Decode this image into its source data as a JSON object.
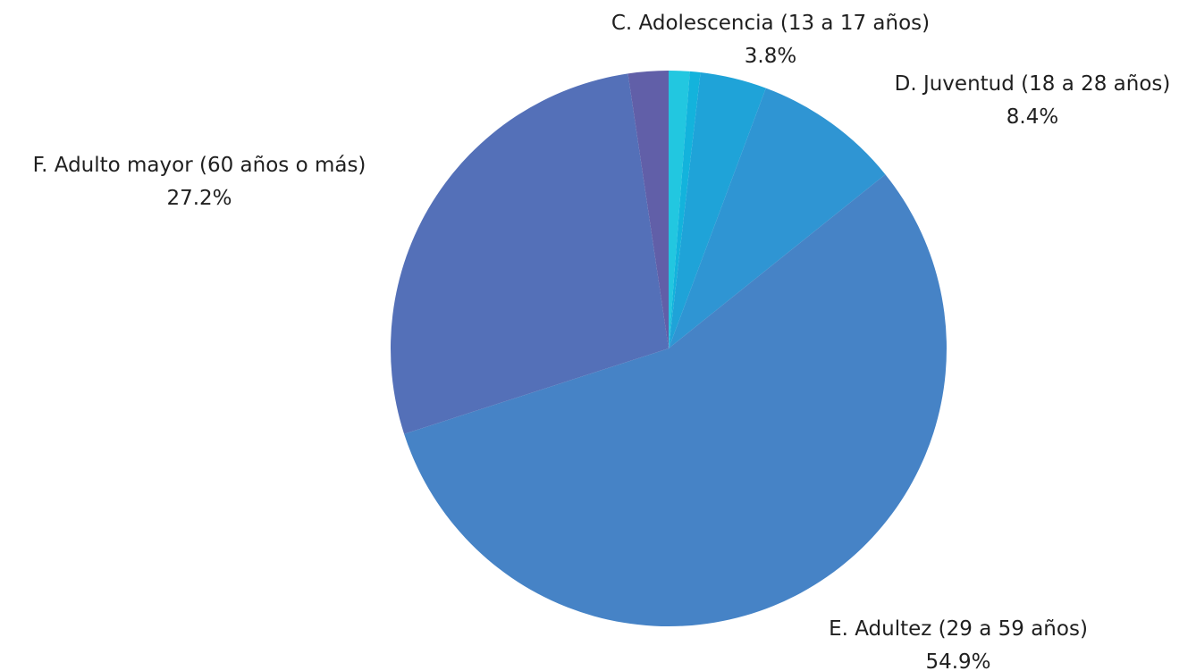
{
  "chart_data": {
    "type": "pie",
    "title": "",
    "slices": [
      {
        "label": "",
        "value": 1.2,
        "value_label": "",
        "color": "#22c7e0"
      },
      {
        "label": "",
        "value": 0.6,
        "value_label": "",
        "color": "#13b3dc"
      },
      {
        "label": "C. Adolescencia (13 a 17 años)",
        "value": 3.8,
        "value_label": "3.8%",
        "color": "#1fa3d8"
      },
      {
        "label": "D. Juventud (18 a 28 años)",
        "value": 8.4,
        "value_label": "8.4%",
        "color": "#2f95d3"
      },
      {
        "label": "E. Adultez (29 a 59 años)",
        "value": 54.9,
        "value_label": "54.9%",
        "color": "#4683c6"
      },
      {
        "label": "F. Adulto mayor (60 años o más)",
        "value": 27.2,
        "value_label": "27.2%",
        "color": "#5470b8"
      },
      {
        "label": "",
        "value": 2.3,
        "value_label": "",
        "color": "#615fa8"
      }
    ],
    "start_angle": "12 o'clock",
    "direction": "clockwise",
    "legend": "none"
  }
}
